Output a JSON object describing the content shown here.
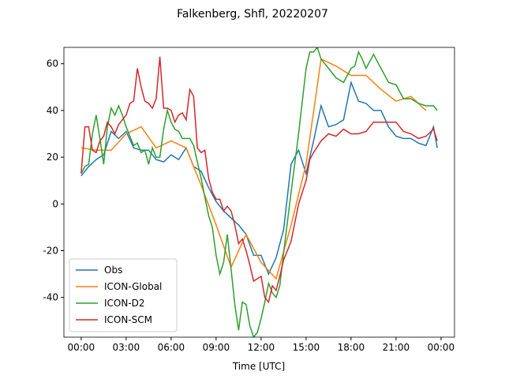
{
  "chart_data": {
    "type": "line",
    "title": "Falkenberg, Shfl, 20220207",
    "xlabel": "Time [UTC]",
    "xlim": [
      -1.15,
      24.9
    ],
    "ylim": [
      -57,
      67
    ],
    "xticks": [
      {
        "value": 0,
        "label": "00:00"
      },
      {
        "value": 3,
        "label": "03:00"
      },
      {
        "value": 6,
        "label": "06:00"
      },
      {
        "value": 9,
        "label": "09:00"
      },
      {
        "value": 12,
        "label": "12:00"
      },
      {
        "value": 15,
        "label": "15:00"
      },
      {
        "value": 18,
        "label": "18:00"
      },
      {
        "value": 21,
        "label": "21:00"
      },
      {
        "value": 24,
        "label": "00:00"
      }
    ],
    "yticks": [
      -40,
      -20,
      0,
      20,
      40,
      60
    ],
    "legend": "lower left",
    "series": [
      {
        "name": "Obs",
        "color": "#1f77b4",
        "x": [
          0,
          0.5,
          1,
          1.5,
          2,
          2.5,
          3,
          3.5,
          4,
          4.5,
          5,
          5.5,
          6,
          6.5,
          7,
          7.5,
          8,
          8.5,
          9,
          9.5,
          10,
          10.5,
          11,
          11.5,
          12,
          12.5,
          13,
          13.5,
          14,
          14.5,
          15,
          15.5,
          16,
          16.5,
          17,
          17.5,
          18,
          18.5,
          19,
          19.5,
          20,
          20.5,
          21,
          21.5,
          22,
          22.5,
          23,
          23.5,
          23.75
        ],
        "values": [
          12,
          16,
          19,
          21,
          31,
          28,
          31,
          24,
          23,
          23,
          19,
          18,
          21,
          19,
          24,
          16,
          14,
          7,
          1,
          -3,
          -6,
          -9,
          -13,
          -22,
          -22,
          -30,
          -23,
          -11,
          17,
          23,
          13,
          27,
          42,
          33,
          34,
          36,
          52,
          44,
          43,
          40,
          40,
          33,
          29,
          28,
          28,
          26,
          25,
          33,
          24
        ]
      },
      {
        "name": "ICON-Global",
        "color": "#ff7f0e",
        "x": [
          0,
          1,
          2,
          3,
          4,
          5,
          6,
          7,
          8,
          9,
          10,
          11,
          12,
          13,
          14,
          15,
          16,
          17,
          18,
          19,
          20,
          21,
          22,
          23
        ],
        "values": [
          24,
          23,
          23,
          30,
          33,
          24,
          27,
          24,
          8,
          -9,
          -27,
          -13,
          -25,
          -32,
          -9,
          17,
          62,
          59,
          55,
          55,
          49,
          44,
          46,
          40
        ]
      },
      {
        "name": "ICON-D2",
        "color": "#2ca02c",
        "x": [
          0,
          0.25,
          0.5,
          0.75,
          1,
          1.25,
          1.5,
          1.75,
          2,
          2.25,
          2.5,
          2.75,
          3,
          3.25,
          3.5,
          3.75,
          4,
          4.25,
          4.5,
          4.75,
          5,
          5.25,
          5.5,
          5.75,
          6,
          6.25,
          6.5,
          6.75,
          7,
          7.25,
          7.5,
          7.75,
          8,
          8.25,
          8.5,
          8.75,
          9,
          9.25,
          9.5,
          9.75,
          10,
          10.25,
          10.5,
          10.75,
          11,
          11.25,
          11.5,
          11.75,
          12,
          12.25,
          12.5,
          12.75,
          13,
          13.25,
          13.5,
          14,
          14.5,
          15,
          15.25,
          15.5,
          15.75,
          16,
          16.5,
          17,
          17.5,
          18,
          18.25,
          18.5,
          18.75,
          19,
          19.5,
          20,
          20.5,
          21,
          21.5,
          22,
          22.5,
          23,
          23.5,
          23.75
        ],
        "values": [
          13,
          16,
          17,
          30,
          38,
          28,
          17,
          33,
          41,
          38,
          42,
          38,
          33,
          29,
          25,
          26,
          22,
          23,
          17,
          24,
          20,
          20,
          32,
          40,
          35,
          32,
          31,
          28,
          28,
          28,
          25,
          18,
          11,
          3,
          -5,
          -10,
          -22,
          -30,
          -25,
          -13,
          -28,
          -43,
          -54,
          -42,
          -43,
          -52,
          -57,
          -55,
          -49,
          -42,
          -34,
          -38,
          -40,
          -35,
          -21,
          5,
          30,
          58,
          65,
          65,
          67,
          62,
          58,
          54,
          52,
          58,
          59,
          65,
          62,
          58,
          64,
          58,
          52,
          51,
          45,
          45,
          43,
          42,
          42,
          40
        ]
      },
      {
        "name": "ICON-SCM",
        "color": "#d62728",
        "x": [
          0,
          0.25,
          0.5,
          0.75,
          1,
          1.25,
          1.5,
          1.75,
          2,
          2.25,
          2.5,
          2.75,
          3,
          3.25,
          3.5,
          3.75,
          4,
          4.25,
          4.5,
          4.75,
          5,
          5.25,
          5.5,
          5.75,
          6,
          6.25,
          6.5,
          6.75,
          7,
          7.25,
          7.5,
          7.75,
          8,
          8.25,
          8.5,
          8.75,
          9,
          9.25,
          9.5,
          9.75,
          10,
          10.25,
          10.5,
          10.75,
          11,
          11.25,
          11.5,
          12,
          12.25,
          12.5,
          12.75,
          13,
          13.25,
          13.5,
          14,
          14.5,
          15,
          15.25,
          15.5,
          16,
          16.5,
          17,
          17.5,
          18,
          18.5,
          19,
          19.5,
          20,
          20.5,
          21,
          21.5,
          22,
          22.5,
          23,
          23.5,
          23.75
        ],
        "values": [
          13,
          33,
          33,
          23,
          22,
          27,
          29,
          35,
          33,
          30,
          34,
          36,
          38,
          43,
          44,
          58,
          50,
          44,
          43,
          41,
          45,
          63,
          41,
          41,
          40,
          35,
          38,
          39,
          36,
          49,
          46,
          24,
          22,
          23,
          11,
          5,
          2,
          2,
          -3,
          -1,
          -3,
          -9,
          -17,
          -15,
          -20,
          -26,
          -33,
          -31,
          -40,
          -42,
          -35,
          -37,
          -31,
          -24,
          -16,
          0,
          10,
          19,
          22,
          27,
          30,
          29,
          32,
          30,
          30,
          31,
          35,
          35,
          35,
          35,
          31,
          30,
          28,
          29,
          32,
          27
        ]
      }
    ]
  }
}
